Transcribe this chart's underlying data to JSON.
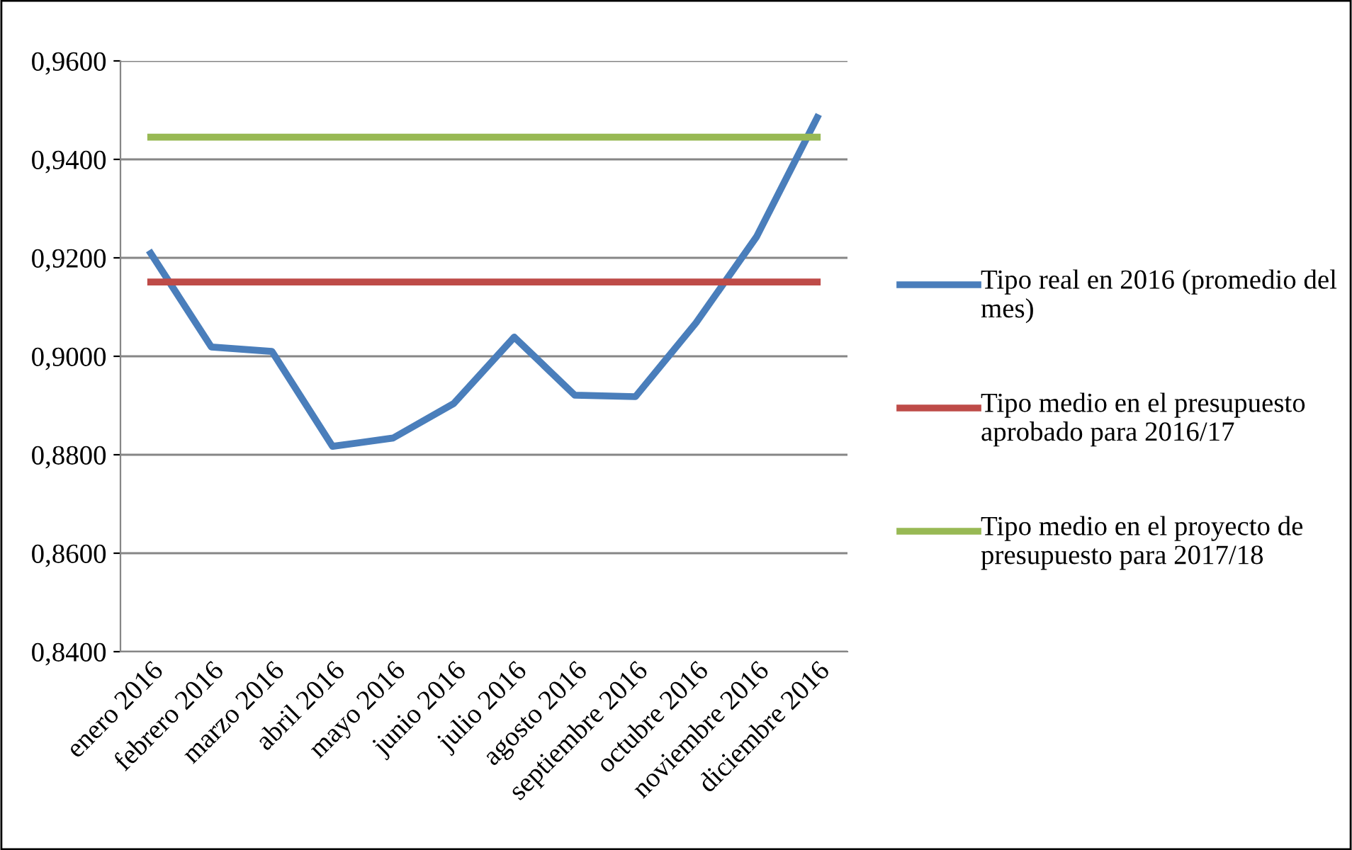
{
  "chart_data": {
    "type": "line",
    "categories": [
      "enero 2016",
      "febrero 2016",
      "marzo 2016",
      "abril 2016",
      "mayo 2016",
      "junio 2016",
      "julio 2016",
      "agosto 2016",
      "septiembre 2016",
      "octubre 2016",
      "noviembre 2016",
      "diciembre 2016"
    ],
    "series": [
      {
        "name": "Tipo real en 2016 (promedio del mes)",
        "color": "#4a7ebb",
        "values": [
          0.9209,
          0.9019,
          0.901,
          0.8817,
          0.8834,
          0.8904,
          0.9039,
          0.8921,
          0.8918,
          0.9068,
          0.9243,
          0.9485
        ]
      },
      {
        "name": "Tipo medio en el presupuesto aprobado para 2016/17",
        "color": "#be4b48",
        "values": [
          0.9151,
          0.9151,
          0.9151,
          0.9151,
          0.9151,
          0.9151,
          0.9151,
          0.9151,
          0.9151,
          0.9151,
          0.9151,
          0.9151
        ]
      },
      {
        "name": "Tipo medio en el proyecto de presupuesto para 2017/18",
        "color": "#98b954",
        "values": [
          0.9445,
          0.9445,
          0.9445,
          0.9445,
          0.9445,
          0.9445,
          0.9445,
          0.9445,
          0.9445,
          0.9445,
          0.9445,
          0.9445
        ]
      }
    ],
    "ylim": [
      0.84,
      0.96
    ],
    "yticks": [
      {
        "value": 0.84,
        "label": "0,8400"
      },
      {
        "value": 0.86,
        "label": "0,8600"
      },
      {
        "value": 0.88,
        "label": "0,8800"
      },
      {
        "value": 0.9,
        "label": "0,9000"
      },
      {
        "value": 0.92,
        "label": "0,9200"
      },
      {
        "value": 0.94,
        "label": "0,9400"
      },
      {
        "value": 0.96,
        "label": "0,9600"
      }
    ],
    "grid": "y",
    "legend": "right",
    "marker": "none",
    "line_style": "solid"
  }
}
